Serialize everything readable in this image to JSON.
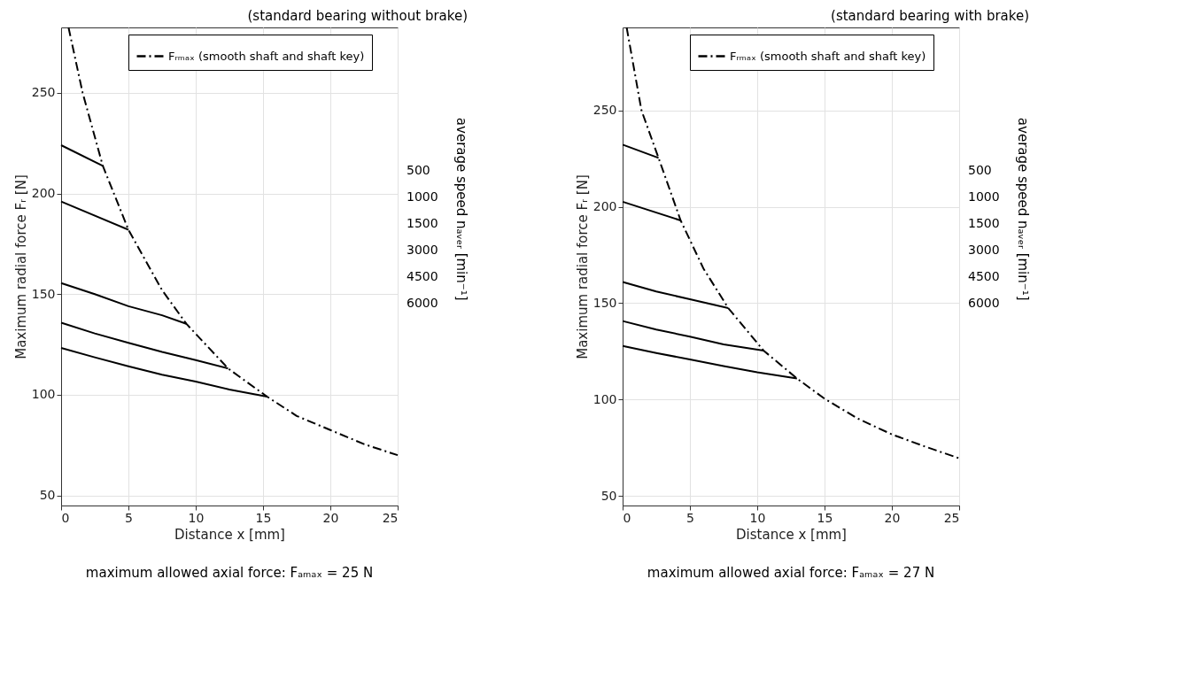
{
  "chart_data": [
    {
      "type": "line",
      "title": "(standard bearing without brake)",
      "xlabel": "Distance x [mm]",
      "ylabel": "Maximum radial force Fᵣ [N]",
      "y2label": "average speed nₐᵥₑᵣ [min⁻¹]",
      "xlim": [
        0,
        25
      ],
      "xticks": [
        0,
        5,
        10,
        15,
        20,
        25
      ],
      "ylim": [
        45,
        282.5
      ],
      "yticks": [
        50,
        100,
        150,
        200,
        250
      ],
      "grid": true,
      "legend": "top",
      "series": [
        {
          "name": "Fᵣₘₐₓ (smooth shaft and shaft key)",
          "color": "#000000",
          "line_style": "dashdot",
          "x": [
            0.55,
            1.6,
            3.1,
            5,
            7.5,
            9.3,
            12.4,
            15.3,
            17.5,
            20,
            22.5,
            25
          ],
          "values": [
            282.5,
            250,
            213.7,
            182,
            152,
            135.3,
            113.1,
            99.1,
            89.5,
            82.5,
            75.5,
            70
          ]
        },
        {
          "color": "#000000",
          "line_style": "solid",
          "x": [
            0,
            3.1
          ],
          "values": [
            224,
            213.7
          ]
        },
        {
          "color": "#000000",
          "line_style": "solid",
          "x": [
            0,
            5
          ],
          "values": [
            196,
            182
          ]
        },
        {
          "color": "#000000",
          "line_style": "solid",
          "x": [
            0,
            2.5,
            5,
            7.5,
            9.3
          ],
          "values": [
            155.5,
            150,
            144,
            139.5,
            135.3
          ]
        },
        {
          "color": "#000000",
          "line_style": "solid",
          "x": [
            0,
            2.5,
            5,
            7.5,
            10,
            12.4
          ],
          "values": [
            135.8,
            130.5,
            125.8,
            121.3,
            117.2,
            113.1
          ]
        },
        {
          "color": "#000000",
          "line_style": "solid",
          "x": [
            0,
            2.5,
            5,
            7.5,
            10,
            12.5,
            15.3
          ],
          "values": [
            123.3,
            118.6,
            114.2,
            110,
            106.6,
            102.6,
            99.1
          ]
        }
      ],
      "annotations": [
        "500",
        "1000",
        "1500",
        "3000",
        "4500",
        "6000",
        "maximum allowed axial force: Fₐₘₐₓ =  25 N"
      ]
    },
    {
      "type": "line",
      "title": "(standard bearing with brake)",
      "xlabel": "Distance x [mm]",
      "ylabel": "Maximum radial force Fᵣ [N]",
      "y2label": "average speed nₐᵥₑᵣ [min⁻¹]",
      "xlim": [
        0,
        25
      ],
      "xticks": [
        0,
        5,
        10,
        15,
        20,
        25
      ],
      "ylim": [
        45,
        293
      ],
      "yticks": [
        50,
        100,
        150,
        200,
        250
      ],
      "grid": true,
      "legend": "top",
      "series": [
        {
          "name": "Fᵣₘₐₓ (smooth shaft and shaft key)",
          "color": "#000000",
          "line_style": "dashdot",
          "x": [
            0.3,
            1.4,
            2.67,
            4.31,
            6,
            7.85,
            10.47,
            12.95,
            15,
            17.5,
            20,
            22.5,
            25
          ],
          "values": [
            293,
            250,
            225.3,
            192.9,
            168,
            147.4,
            125.4,
            110.9,
            100.4,
            90,
            81.9,
            75.5,
            69.5
          ]
        },
        {
          "color": "#000000",
          "line_style": "solid",
          "x": [
            0,
            2.67
          ],
          "values": [
            232.2,
            225.3
          ]
        },
        {
          "color": "#000000",
          "line_style": "solid",
          "x": [
            0,
            4.31
          ],
          "values": [
            202.6,
            192.9
          ]
        },
        {
          "color": "#000000",
          "line_style": "solid",
          "x": [
            0,
            2.5,
            5,
            7.85
          ],
          "values": [
            161,
            156,
            152,
            147.4
          ]
        },
        {
          "color": "#000000",
          "line_style": "solid",
          "x": [
            0,
            2.5,
            5,
            7.5,
            10.47
          ],
          "values": [
            140.7,
            136.3,
            132.6,
            128.6,
            125.4
          ]
        },
        {
          "color": "#000000",
          "line_style": "solid",
          "x": [
            0,
            2.5,
            5,
            7.5,
            10,
            12.95
          ],
          "values": [
            127.8,
            124.1,
            120.8,
            117.3,
            114.1,
            110.9
          ]
        }
      ],
      "annotations": [
        "500",
        "1000",
        "1500",
        "3000",
        "4500",
        "6000",
        "maximum allowed axial force: Fₐₘₐₓ =  27 N"
      ]
    }
  ]
}
